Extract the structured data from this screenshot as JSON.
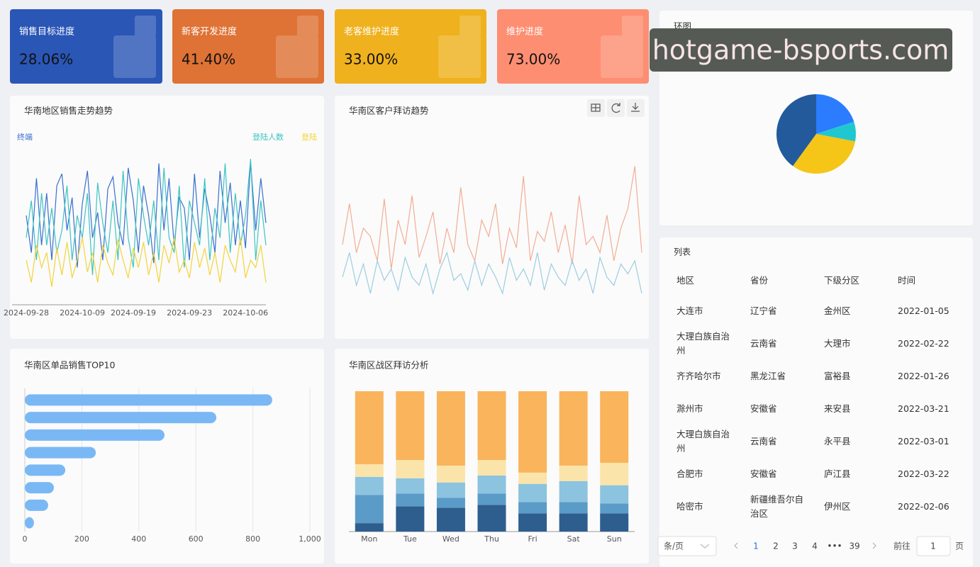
{
  "kpis": [
    {
      "title": "销售目标进度",
      "value": "28.06%"
    },
    {
      "title": "新客开发进度",
      "value": "41.40%"
    },
    {
      "title": "老客维护进度",
      "value": "33.00%"
    },
    {
      "title": "维护进度",
      "value": "73.00%"
    }
  ],
  "chart_data": [
    {
      "type": "line",
      "title": "华南地区销售走势趋势",
      "axis_line": true,
      "categories": [
        "2024-09-28",
        null,
        null,
        null,
        null,
        null,
        null,
        null,
        null,
        null,
        null,
        "2024-10-09",
        null,
        null,
        null,
        null,
        null,
        null,
        null,
        null,
        null,
        "2024-09-19",
        null,
        null,
        null,
        null,
        null,
        null,
        null,
        null,
        null,
        null,
        "2024-09-23",
        null,
        null,
        null,
        null,
        null,
        null,
        null,
        null,
        null,
        null,
        "2024-10-06",
        null,
        null,
        null,
        null
      ],
      "ylim": [
        0,
        100
      ],
      "series": [
        {
          "name": "终端",
          "color": "#3a6fcf",
          "values": [
            60,
            35,
            85,
            40,
            75,
            30,
            80,
            88,
            50,
            72,
            25,
            68,
            90,
            45,
            62,
            30,
            78,
            86,
            55,
            40,
            92,
            70,
            35,
            80,
            60,
            28,
            95,
            50,
            85,
            40,
            72,
            65,
            30,
            88,
            45,
            78,
            60,
            35,
            90,
            55,
            82,
            40,
            70,
            38,
            96,
            50,
            85,
            55
          ]
        },
        {
          "name": "登陆人数",
          "color": "#3cc4c2",
          "values": [
            45,
            70,
            30,
            75,
            40,
            65,
            35,
            50,
            80,
            30,
            60,
            45,
            75,
            20,
            82,
            55,
            35,
            70,
            30,
            90,
            45,
            25,
            85,
            60,
            40,
            70,
            30,
            92,
            45,
            35,
            80,
            25,
            70,
            55,
            40,
            85,
            30,
            65,
            45,
            95,
            35,
            75,
            40,
            60,
            98,
            30,
            70,
            40
          ]
        },
        {
          "name": "登陆",
          "color": "#f2d43a",
          "values": [
            30,
            15,
            40,
            25,
            35,
            12,
            38,
            20,
            42,
            18,
            30,
            45,
            22,
            35,
            15,
            40,
            28,
            20,
            44,
            30,
            18,
            38,
            25,
            42,
            20,
            35,
            15,
            40,
            28,
            45,
            22,
            30,
            18,
            42,
            25,
            38,
            20,
            35,
            15,
            40,
            30,
            22,
            45,
            18,
            30,
            25,
            40,
            15
          ]
        }
      ]
    },
    {
      "type": "line",
      "title": "华南区客户拜访趋势",
      "axis_line": false,
      "ylim": [
        0,
        100
      ],
      "series": [
        {
          "color": "#f2ad95",
          "values": [
            50,
            75,
            45,
            60,
            55,
            40,
            78,
            35,
            65,
            50,
            80,
            42,
            55,
            70,
            38,
            60,
            45,
            85,
            50,
            40,
            65,
            55,
            75,
            38,
            60,
            48,
            92,
            40,
            58,
            52,
            70,
            45,
            62,
            38,
            80,
            50,
            55,
            45,
            68,
            40,
            60,
            72,
            98,
            45
          ]
        },
        {
          "color": "#9ccde0",
          "values": [
            30,
            45,
            25,
            38,
            20,
            40,
            28,
            35,
            22,
            42,
            30,
            25,
            38,
            20,
            35,
            45,
            28,
            32,
            22,
            40,
            25,
            38,
            30,
            20,
            42,
            28,
            35,
            25,
            45,
            22,
            38,
            30,
            25,
            40,
            28,
            35,
            20,
            42,
            30,
            25,
            38,
            32,
            40,
            20
          ]
        }
      ]
    },
    {
      "type": "bar",
      "orientation": "horizontal",
      "title": "华南区单品销售TOP10",
      "color": "#7ab8f5",
      "grid": true,
      "categories": [
        null,
        null,
        null,
        null,
        null,
        null,
        null,
        null
      ],
      "values": [
        868,
        672,
        490,
        249,
        142,
        102,
        82,
        32
      ],
      "xlim": [
        0,
        1000
      ],
      "xticks": [
        0,
        200,
        400,
        600,
        800,
        {
          "value": 1000,
          "label": "1,000"
        }
      ]
    },
    {
      "type": "bar",
      "stacked": true,
      "title": "华南区战区拜访分析",
      "categories": [
        "Mon",
        "Tue",
        "Wed",
        "Thu",
        "Fri",
        "Sat",
        "Sun"
      ],
      "ylim": [
        0,
        100
      ],
      "series": [
        {
          "color": "#2e5e8e",
          "values": [
            6,
            18,
            17,
            19,
            13,
            13,
            13
          ]
        },
        {
          "color": "#5b9bc8",
          "values": [
            20,
            9,
            7,
            8,
            8,
            8,
            7
          ]
        },
        {
          "color": "#8cc3df",
          "values": [
            13,
            11,
            11,
            13,
            13,
            15,
            13
          ]
        },
        {
          "color": "#fbe4aa",
          "values": [
            9,
            13,
            12,
            11,
            8,
            11,
            16
          ]
        },
        {
          "color": "#f9b45c",
          "values": [
            52,
            49,
            53,
            49,
            58,
            53,
            51
          ]
        }
      ]
    },
    {
      "type": "pie",
      "title": "环图",
      "values": [
        20,
        8,
        32,
        40
      ],
      "colors": [
        "#2b7cff",
        "#1fc8d0",
        "#f5c518",
        "#235a9c"
      ]
    }
  ],
  "table": {
    "title": "列表",
    "headers": [
      "地区",
      "省份",
      "下级分区",
      "时间"
    ],
    "rows": [
      [
        "大连市",
        "辽宁省",
        "金州区",
        "2022-01-05"
      ],
      [
        "大理白族自治州",
        "云南省",
        "大理市",
        "2022-02-22"
      ],
      [
        "齐齐哈尔市",
        "黑龙江省",
        "富裕县",
        "2022-01-26"
      ],
      [
        "滁州市",
        "安徽省",
        "来安县",
        "2022-03-21"
      ],
      [
        "大理白族自治州",
        "云南省",
        "永平县",
        "2022-03-01"
      ],
      [
        "合肥市",
        "安徽省",
        "庐江县",
        "2022-03-22"
      ],
      [
        "哈密市",
        "新疆维吾尔自治区",
        "伊州区",
        "2022-02-06"
      ]
    ]
  },
  "pagination": {
    "page_size": "条/页",
    "pages": [
      "1",
      "2",
      "3",
      "4",
      "•••",
      "39"
    ],
    "goto": "前往",
    "input": "1",
    "unit": "页"
  },
  "watermark": "hotgame-bsports.com"
}
